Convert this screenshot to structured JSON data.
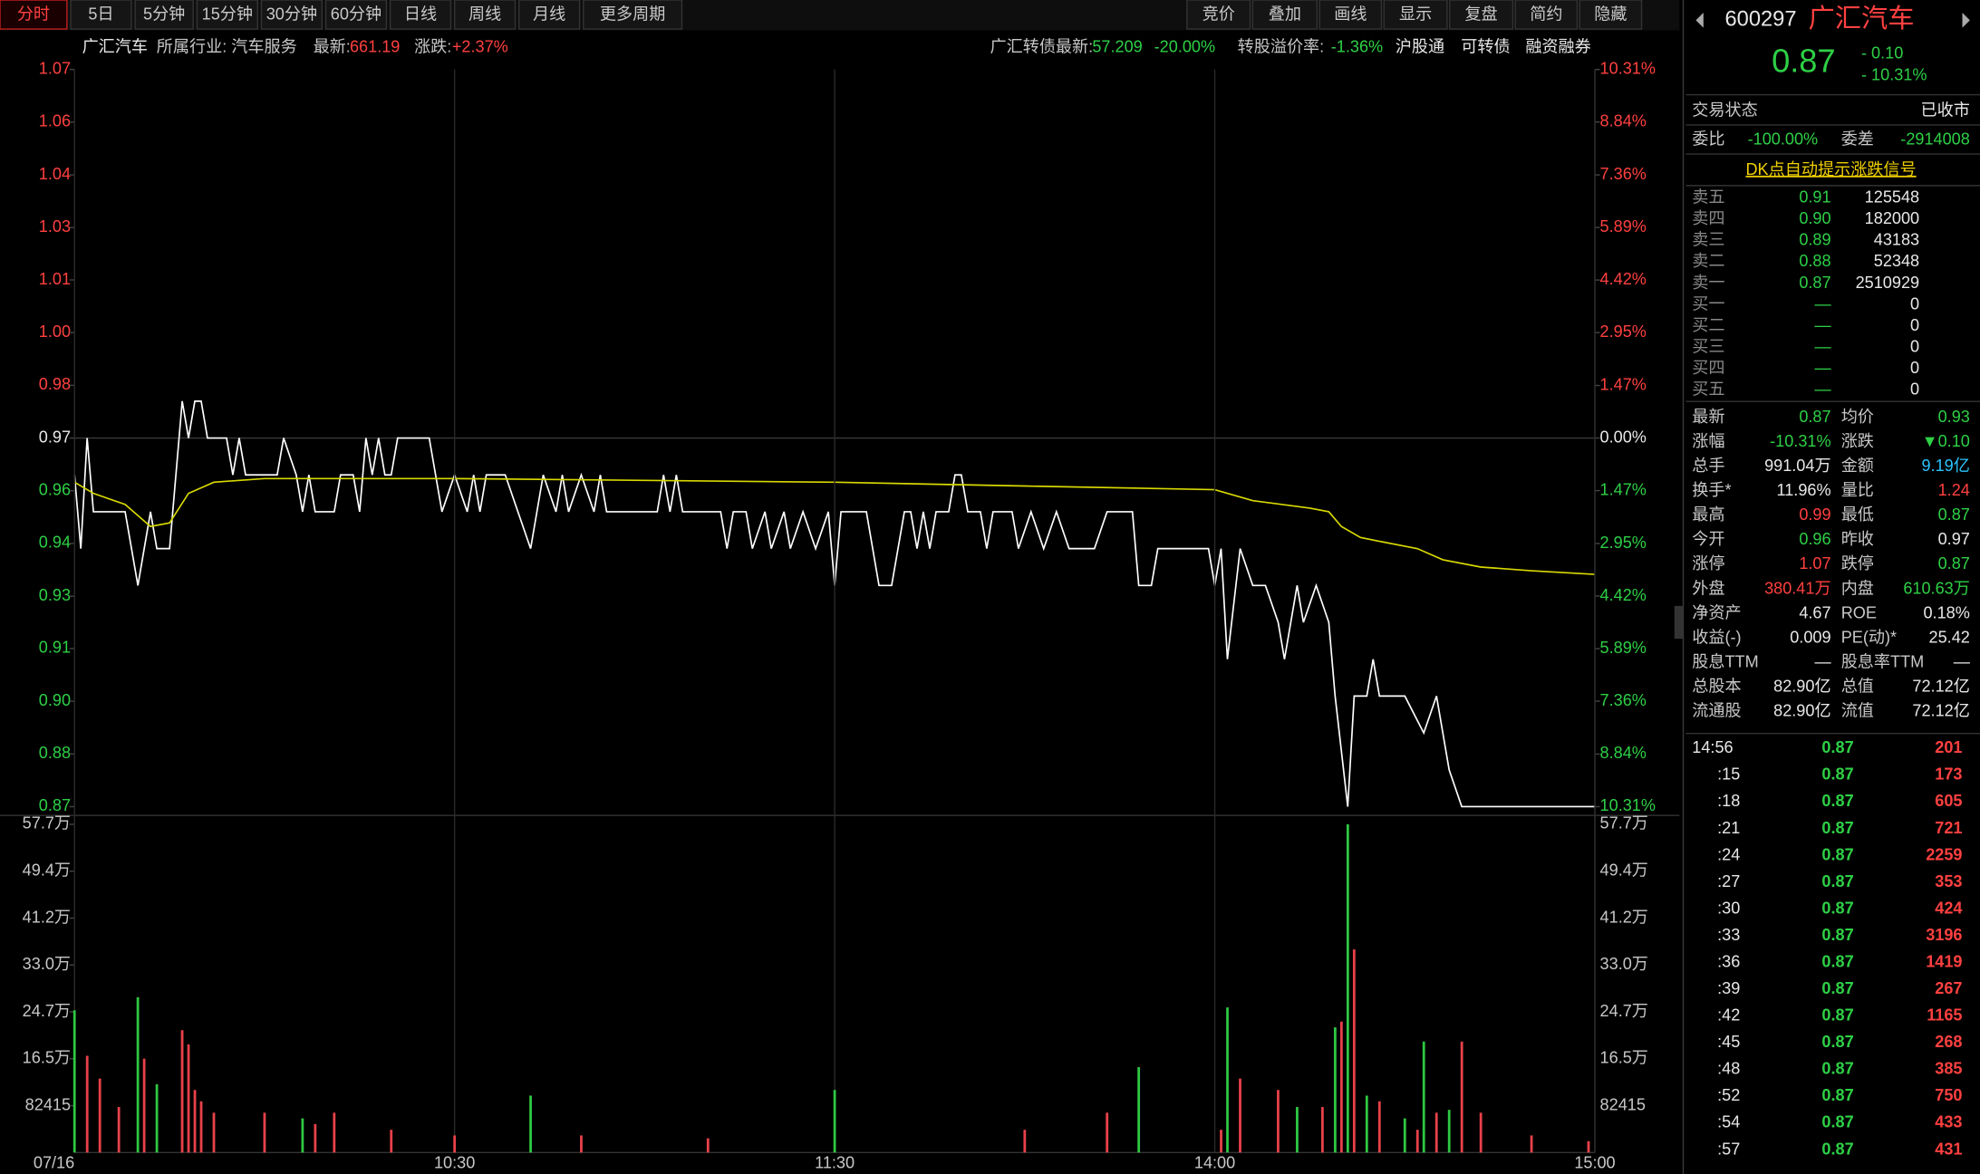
{
  "toolbar": {
    "tabs": [
      "分时",
      "5日",
      "5分钟",
      "15分钟",
      "30分钟",
      "60分钟",
      "日线",
      "周线",
      "月线",
      "更多周期"
    ],
    "buttons": [
      "竞价",
      "叠加",
      "画线",
      "显示",
      "复盘",
      "简约",
      "隐藏"
    ]
  },
  "info_bar": {
    "name": "广汇汽车",
    "industry": "所属行业: 汽车服务",
    "latest_label": "最新:",
    "latest": "661.19",
    "change_label": "涨跌:",
    "change": "+2.37%",
    "bond_label": "广汇转债最新:",
    "bond": "57.209",
    "bond_change": "-20.00%",
    "premium_label": "转股溢价率:",
    "premium": "-1.36%",
    "links": [
      "沪股通",
      "可转债",
      "融资融券"
    ]
  },
  "chart_data": [
    {
      "type": "line",
      "xlim": [
        0,
        240
      ],
      "ylim": [
        0.87,
        1.07
      ],
      "yticks": [
        {
          "value": 0.87,
          "label": "0.87"
        },
        {
          "value": 0.8843,
          "label": "0.88"
        },
        {
          "value": 0.8986,
          "label": "0.90"
        },
        {
          "value": 0.9129,
          "label": "0.91"
        },
        {
          "value": 0.9271,
          "label": "0.93"
        },
        {
          "value": 0.9414,
          "label": "0.94"
        },
        {
          "value": 0.9557,
          "label": "0.96"
        },
        {
          "value": 0.97,
          "label": "0.97"
        },
        {
          "value": 0.9843,
          "label": "0.98"
        },
        {
          "value": 0.9986,
          "label": "1.00"
        },
        {
          "value": 1.0129,
          "label": "1.01"
        },
        {
          "value": 1.0271,
          "label": "1.03"
        },
        {
          "value": 1.0414,
          "label": "1.04"
        },
        {
          "value": 1.0557,
          "label": "1.06"
        },
        {
          "value": 1.07,
          "label": "1.07"
        }
      ],
      "y2lim": [
        -10.31,
        10.31
      ],
      "y2ticks": [
        {
          "value": -10.31,
          "label": "10.31%"
        },
        {
          "value": -8.84,
          "label": "8.84%"
        },
        {
          "value": -7.36,
          "label": "7.36%"
        },
        {
          "value": -5.89,
          "label": "5.89%"
        },
        {
          "value": -4.42,
          "label": "4.42%"
        },
        {
          "value": -2.95,
          "label": "2.95%"
        },
        {
          "value": -1.47,
          "label": "1.47%"
        },
        {
          "value": 0,
          "label": "0.00%"
        },
        {
          "value": 1.47,
          "label": "1.47%"
        },
        {
          "value": 2.95,
          "label": "2.95%"
        },
        {
          "value": 4.42,
          "label": "4.42%"
        },
        {
          "value": 5.89,
          "label": "5.89%"
        },
        {
          "value": 7.36,
          "label": "7.36%"
        },
        {
          "value": 8.84,
          "label": "8.84%"
        },
        {
          "value": 10.31,
          "label": "10.31%"
        }
      ],
      "series": [
        {
          "color": "#ffffff",
          "x": [
            0,
            1,
            2,
            3,
            8,
            10,
            12,
            13,
            15,
            17,
            18,
            19,
            20,
            21,
            24,
            25,
            26,
            27,
            32,
            33,
            35,
            36,
            37,
            38,
            41,
            42,
            44,
            45,
            46,
            47,
            48,
            49,
            50,
            51,
            53,
            56,
            58,
            60,
            62,
            63,
            64,
            65,
            68,
            72,
            74,
            76,
            77,
            78,
            80,
            82,
            83,
            84,
            92,
            93,
            94,
            95,
            96,
            102,
            103,
            104,
            106,
            107,
            109,
            110,
            112,
            113,
            115,
            117,
            119,
            120,
            121,
            125,
            127,
            129,
            131,
            132,
            133,
            134,
            135,
            136,
            138,
            139,
            140,
            141,
            143,
            144,
            145,
            148,
            149,
            151,
            153,
            155,
            157,
            161,
            163,
            167,
            168,
            170,
            171,
            179,
            180,
            181,
            182,
            184,
            186,
            188,
            190,
            191,
            193,
            194,
            196,
            198,
            199,
            201,
            202,
            204,
            205,
            206,
            210,
            213,
            215,
            217,
            219,
            240
          ],
          "values": [
            0.96,
            0.94,
            0.97,
            0.95,
            0.95,
            0.93,
            0.95,
            0.94,
            0.94,
            0.98,
            0.97,
            0.98,
            0.98,
            0.97,
            0.97,
            0.96,
            0.97,
            0.96,
            0.96,
            0.97,
            0.96,
            0.95,
            0.96,
            0.95,
            0.95,
            0.96,
            0.96,
            0.95,
            0.97,
            0.96,
            0.97,
            0.96,
            0.96,
            0.97,
            0.97,
            0.97,
            0.95,
            0.96,
            0.95,
            0.96,
            0.95,
            0.96,
            0.96,
            0.94,
            0.96,
            0.95,
            0.96,
            0.95,
            0.96,
            0.95,
            0.96,
            0.95,
            0.95,
            0.96,
            0.95,
            0.96,
            0.95,
            0.95,
            0.94,
            0.95,
            0.95,
            0.94,
            0.95,
            0.94,
            0.95,
            0.94,
            0.95,
            0.94,
            0.95,
            0.93,
            0.95,
            0.95,
            0.93,
            0.93,
            0.95,
            0.95,
            0.94,
            0.95,
            0.94,
            0.95,
            0.95,
            0.96,
            0.96,
            0.95,
            0.95,
            0.94,
            0.95,
            0.95,
            0.94,
            0.95,
            0.94,
            0.95,
            0.94,
            0.94,
            0.95,
            0.95,
            0.93,
            0.93,
            0.94,
            0.94,
            0.93,
            0.94,
            0.91,
            0.94,
            0.93,
            0.93,
            0.92,
            0.91,
            0.93,
            0.92,
            0.93,
            0.92,
            0.9,
            0.87,
            0.9,
            0.9,
            0.91,
            0.9,
            0.9,
            0.89,
            0.9,
            0.88,
            0.87,
            0.87
          ]
        },
        {
          "color": "#d8d800",
          "x": [
            0,
            3,
            8,
            12,
            15,
            18,
            22,
            30,
            60,
            120,
            150,
            180,
            186,
            195,
            198,
            200,
            203,
            206,
            212,
            216,
            222,
            230,
            240
          ],
          "values": [
            0.958,
            0.955,
            0.952,
            0.946,
            0.947,
            0.955,
            0.958,
            0.959,
            0.959,
            0.958,
            0.957,
            0.956,
            0.953,
            0.951,
            0.95,
            0.946,
            0.943,
            0.942,
            0.94,
            0.937,
            0.935,
            0.934,
            0.933
          ]
        }
      ]
    },
    {
      "type": "bar",
      "xlim": [
        0,
        240
      ],
      "ylim": [
        0,
        576905
      ],
      "yticks": [
        82415,
        {
          "value": 164830,
          "label": "16.5万"
        },
        {
          "value": 247245,
          "label": "24.7万"
        },
        {
          "value": 329660,
          "label": "33.0万"
        },
        {
          "value": 412075,
          "label": "41.2万"
        },
        {
          "value": 494490,
          "label": "49.4万"
        },
        {
          "value": 576905,
          "label": "57.7万"
        }
      ],
      "xticks": [
        {
          "value": 0,
          "label": "07/16"
        },
        {
          "value": 60,
          "label": "10:30"
        },
        {
          "value": 120,
          "label": "11:30"
        },
        {
          "value": 180,
          "label": "14:00"
        },
        {
          "value": 240,
          "label": "15:00"
        }
      ],
      "series": [
        {
          "color": "#2ec842",
          "x": [
            0,
            10,
            13,
            36,
            72,
            120,
            168,
            182,
            193,
            199,
            201,
            204,
            210,
            213,
            217
          ],
          "values": [
            250000,
            273000,
            120000,
            60000,
            100000,
            110000,
            150000,
            255000,
            80000,
            220000,
            577000,
            100000,
            60000,
            195000,
            75000
          ]
        },
        {
          "color": "#e8414a",
          "x": [
            2,
            4,
            7,
            11,
            17,
            18,
            19,
            20,
            22,
            30,
            38,
            41,
            50,
            60,
            80,
            100,
            150,
            163,
            181,
            184,
            190,
            197,
            200,
            202,
            206,
            212,
            215,
            219,
            222,
            230,
            239
          ],
          "values": [
            170000,
            130000,
            80000,
            165000,
            215000,
            190000,
            110000,
            90000,
            70000,
            70000,
            50000,
            70000,
            40000,
            30000,
            30000,
            25000,
            40000,
            70000,
            40000,
            130000,
            110000,
            80000,
            230000,
            357000,
            90000,
            40000,
            70000,
            195000,
            70000,
            30000,
            20000
          ]
        }
      ]
    }
  ],
  "panel": {
    "code": "600297",
    "name": "广汇汽车",
    "price": "0.87",
    "change": "- 0.10",
    "change_pct": "- 10.31%",
    "status_label": "交易状态",
    "status": "已收市",
    "ratio_label": "委比",
    "ratio": "-100.00%",
    "diff_label": "委差",
    "diff": "-2914008",
    "dk_link": "DK点自动提示涨跌信号",
    "order_book": [
      [
        "卖五",
        "0.91",
        "125548"
      ],
      [
        "卖四",
        "0.90",
        "182000"
      ],
      [
        "卖三",
        "0.89",
        "43183"
      ],
      [
        "卖二",
        "0.88",
        "52348"
      ],
      [
        "卖一",
        "0.87",
        "2510929"
      ],
      [
        "买一",
        "—",
        "0"
      ],
      [
        "买二",
        "—",
        "0"
      ],
      [
        "买三",
        "—",
        "0"
      ],
      [
        "买四",
        "—",
        "0"
      ],
      [
        "买五",
        "—",
        "0"
      ]
    ],
    "stats": [
      [
        "最新",
        "0.87",
        "均价",
        "0.93"
      ],
      [
        "涨幅",
        "-10.31%",
        "涨跌",
        "▼0.10"
      ],
      [
        "总手",
        "991.04万",
        "金额",
        "9.19亿"
      ],
      [
        "换手*",
        "11.96%",
        "量比",
        "1.24"
      ],
      [
        "最高",
        "0.99",
        "最低",
        "0.87"
      ],
      [
        "今开",
        "0.96",
        "昨收",
        "0.97"
      ],
      [
        "涨停",
        "1.07",
        "跌停",
        "0.87"
      ],
      [
        "外盘",
        "380.41万",
        "内盘",
        "610.63万"
      ],
      [
        "净资产",
        "4.67",
        "ROE",
        "0.18%"
      ],
      [
        "收益(-)",
        "0.009",
        "PE(动)*",
        "25.42"
      ],
      [
        "股息TTM",
        "—",
        "股息率TTM",
        "—"
      ],
      [
        "总股本",
        "82.90亿",
        "总值",
        "72.12亿"
      ],
      [
        "流通股",
        "82.90亿",
        "流值",
        "72.12亿"
      ]
    ],
    "stat_tones": [
      [
        "down",
        "down"
      ],
      [
        "down",
        "down"
      ],
      [
        "flat",
        "cyan"
      ],
      [
        "flat",
        "up"
      ],
      [
        "up",
        "down"
      ],
      [
        "down",
        "flat"
      ],
      [
        "up",
        "down"
      ],
      [
        "up",
        "down"
      ],
      [
        "flat",
        "flat"
      ],
      [
        "flat",
        "flat"
      ],
      [
        "flat",
        "flat"
      ],
      [
        "flat",
        "flat"
      ],
      [
        "flat",
        "flat"
      ]
    ],
    "ticks": [
      [
        "14:56",
        "0.87",
        "201"
      ],
      [
        ":15",
        "0.87",
        "173"
      ],
      [
        ":18",
        "0.87",
        "605"
      ],
      [
        ":21",
        "0.87",
        "721"
      ],
      [
        ":24",
        "0.87",
        "2259"
      ],
      [
        ":27",
        "0.87",
        "353"
      ],
      [
        ":30",
        "0.87",
        "424"
      ],
      [
        ":33",
        "0.87",
        "3196"
      ],
      [
        ":36",
        "0.87",
        "1419"
      ],
      [
        ":39",
        "0.87",
        "267"
      ],
      [
        ":42",
        "0.87",
        "1165"
      ],
      [
        ":45",
        "0.87",
        "268"
      ],
      [
        ":48",
        "0.87",
        "385"
      ],
      [
        ":52",
        "0.87",
        "750"
      ],
      [
        ":54",
        "0.87",
        "433"
      ],
      [
        ":57",
        "0.87",
        "431"
      ]
    ]
  }
}
